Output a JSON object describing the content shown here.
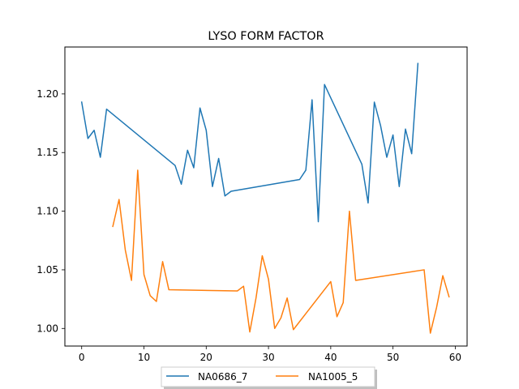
{
  "chart_data": {
    "type": "line",
    "title": "LYSO FORM FACTOR",
    "xlabel": "",
    "ylabel": "",
    "xlim": [
      -2.7,
      61.9
    ],
    "ylim": [
      0.985,
      1.24
    ],
    "xticks": [
      0,
      10,
      20,
      30,
      40,
      50,
      60
    ],
    "yticks": [
      1.0,
      1.05,
      1.1,
      1.15,
      1.2
    ],
    "xtick_labels": [
      "0",
      "10",
      "20",
      "30",
      "40",
      "50",
      "60"
    ],
    "ytick_labels": [
      "1.00",
      "1.05",
      "1.10",
      "1.15",
      "1.20"
    ],
    "grid": false,
    "legend_position": "lower-center-outside",
    "series": [
      {
        "name": "NA0686_7",
        "color": "#1f77b4",
        "x": [
          0,
          1,
          2,
          3,
          4,
          15,
          16,
          17,
          18,
          19,
          20,
          21,
          22,
          23,
          24,
          35,
          36,
          37,
          38,
          39,
          45,
          46,
          47,
          48,
          49,
          50,
          51,
          52,
          53,
          54
        ],
        "y": [
          1.193,
          1.162,
          1.169,
          1.146,
          1.187,
          1.139,
          1.123,
          1.152,
          1.137,
          1.188,
          1.169,
          1.121,
          1.145,
          1.113,
          1.117,
          1.127,
          1.135,
          1.195,
          1.091,
          1.208,
          1.14,
          1.107,
          1.193,
          1.173,
          1.146,
          1.165,
          1.121,
          1.17,
          1.149,
          1.226
        ]
      },
      {
        "name": "NA1005_5",
        "color": "#ff7f0e",
        "x": [
          5,
          6,
          7,
          8,
          9,
          10,
          11,
          12,
          13,
          14,
          25,
          26,
          27,
          28,
          29,
          30,
          31,
          32,
          33,
          34,
          40,
          41,
          42,
          43,
          44,
          55,
          56,
          57,
          58,
          59
        ],
        "y": [
          1.087,
          1.11,
          1.067,
          1.041,
          1.135,
          1.046,
          1.028,
          1.023,
          1.057,
          1.033,
          1.032,
          1.036,
          0.997,
          1.026,
          1.062,
          1.042,
          1.0,
          1.009,
          1.026,
          0.999,
          1.04,
          1.01,
          1.022,
          1.1,
          1.041,
          1.05,
          0.996,
          1.018,
          1.045,
          1.027
        ]
      }
    ]
  }
}
